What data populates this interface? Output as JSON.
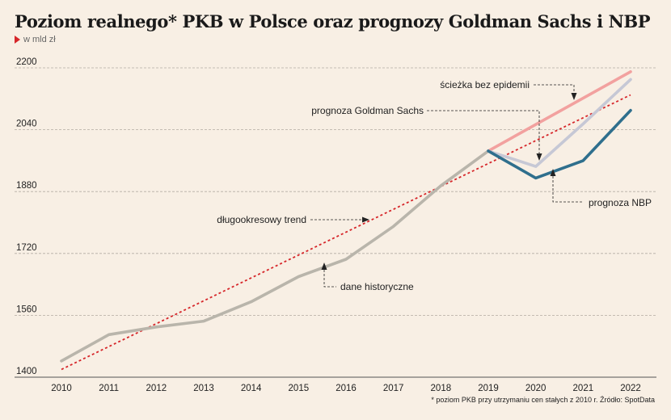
{
  "chart_data": {
    "type": "line",
    "title": "Poziom realnego* PKB w Polsce oraz prognozy Goldman Sachs i NBP",
    "subtitle": "w mld zł",
    "footnote": "* poziom PKB przy utrzymaniu cen stałych z 2010 r. Źródło: SpotData",
    "x": [
      2010,
      2011,
      2012,
      2013,
      2014,
      2015,
      2016,
      2017,
      2018,
      2019,
      2020,
      2021,
      2022
    ],
    "ylim": [
      1400,
      2200
    ],
    "yticks": [
      1400,
      1560,
      1720,
      1880,
      2040,
      2200
    ],
    "grid": true,
    "series": [
      {
        "name": "dane historyczne",
        "color": "#b9b5ab",
        "x": [
          2010,
          2011,
          2012,
          2013,
          2014,
          2015,
          2016,
          2017,
          2018,
          2019
        ],
        "values": [
          1442,
          1510,
          1530,
          1545,
          1595,
          1660,
          1705,
          1790,
          1895,
          1985
        ]
      },
      {
        "name": "długookresowy trend",
        "color": "#d6262a",
        "dashed": true,
        "x": [
          2010,
          2022
        ],
        "values": [
          1420,
          2130
        ]
      },
      {
        "name": "ścieżka bez epidemii",
        "color": "#f2a19f",
        "x": [
          2019,
          2022
        ],
        "values": [
          1985,
          2190
        ]
      },
      {
        "name": "prognoza Goldman Sachs",
        "color": "#c6c8d5",
        "x": [
          2019,
          2020,
          2021,
          2022
        ],
        "values": [
          1985,
          1945,
          2055,
          2170
        ]
      },
      {
        "name": "prognoza NBP",
        "color": "#2f6f8d",
        "x": [
          2019,
          2020,
          2021,
          2022
        ],
        "values": [
          1985,
          1915,
          1960,
          2090
        ]
      }
    ],
    "annotations": [
      {
        "text": "ścieżka bez epidemii",
        "series": 2
      },
      {
        "text": "prognoza Goldman Sachs",
        "series": 3
      },
      {
        "text": "długookresowy trend",
        "series": 1
      },
      {
        "text": "dane historyczne",
        "series": 0
      },
      {
        "text": "prognoza NBP",
        "series": 4
      }
    ]
  }
}
